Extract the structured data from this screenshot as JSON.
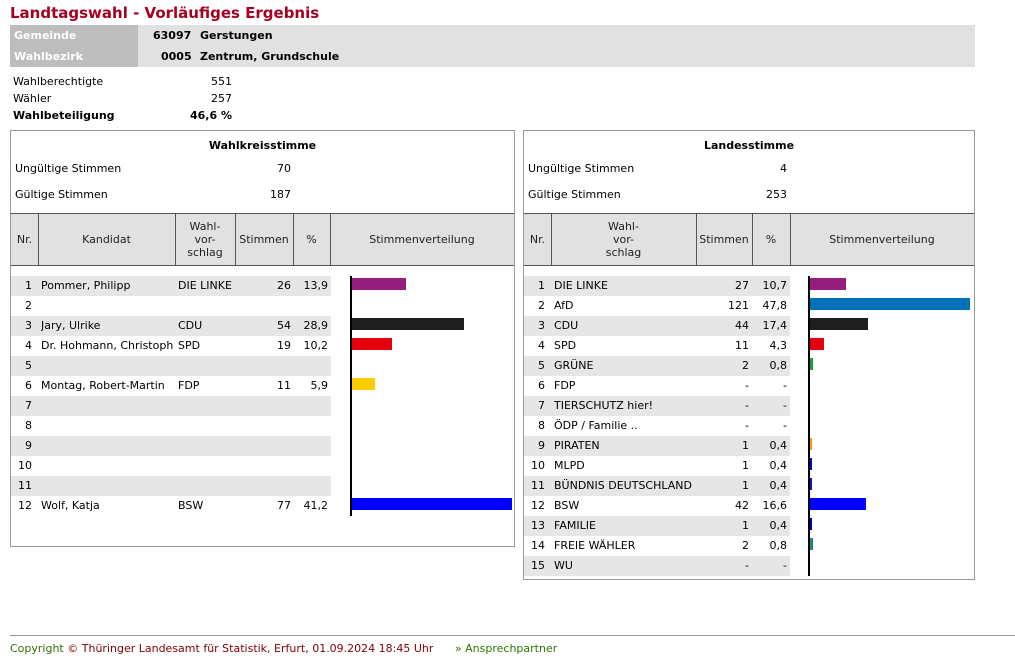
{
  "title": "Landtagswahl - Vorläufiges Ergebnis",
  "gemeinde": {
    "label": "Gemeinde",
    "nr": "63097",
    "name": "Gerstungen"
  },
  "wahlbezirk": {
    "label": "Wahlbezirk",
    "nr": "0005",
    "name": "Zentrum, Grundschule"
  },
  "stats": [
    {
      "label": "Wahlberechtigte",
      "value": "551"
    },
    {
      "label": "Wähler",
      "value": "257"
    },
    {
      "label": "Wahlbeteiligung",
      "value": "46,6 %"
    }
  ],
  "wahlkreis": {
    "title": "Wahlkreisstimme",
    "ungueltig_label": "Ungültige Stimmen",
    "ungueltig": "70",
    "gueltig_label": "Gültige Stimmen",
    "gueltig": "187",
    "headers": [
      "Nr.",
      "Kandidat",
      "Wahl-\nvor-\nschlag",
      "Stimmen",
      "%",
      "Stimmenverteilung"
    ],
    "rows": [
      {
        "nr": "1",
        "name": "Pommer, Philipp",
        "party": "DIE LINKE",
        "votes": "26",
        "pct": "13,9",
        "value": 13.9,
        "color": "#951d7e"
      },
      {
        "nr": "2",
        "name": "",
        "party": "",
        "votes": "",
        "pct": "",
        "value": 0,
        "color": ""
      },
      {
        "nr": "3",
        "name": "Jary, Ulrike",
        "party": "CDU",
        "votes": "54",
        "pct": "28,9",
        "value": 28.9,
        "color": "#1f1f1f"
      },
      {
        "nr": "4",
        "name": "Dr. Hohmann, Christoph",
        "party": "SPD",
        "votes": "19",
        "pct": "10,2",
        "value": 10.2,
        "color": "#e3000f"
      },
      {
        "nr": "5",
        "name": "",
        "party": "",
        "votes": "",
        "pct": "",
        "value": 0,
        "color": ""
      },
      {
        "nr": "6",
        "name": "Montag, Robert-Martin",
        "party": "FDP",
        "votes": "11",
        "pct": "5,9",
        "value": 5.9,
        "color": "#ffcc00"
      },
      {
        "nr": "7",
        "name": "",
        "party": "",
        "votes": "",
        "pct": "",
        "value": 0,
        "color": ""
      },
      {
        "nr": "8",
        "name": "",
        "party": "",
        "votes": "",
        "pct": "",
        "value": 0,
        "color": ""
      },
      {
        "nr": "9",
        "name": "",
        "party": "",
        "votes": "",
        "pct": "",
        "value": 0,
        "color": ""
      },
      {
        "nr": "10",
        "name": "",
        "party": "",
        "votes": "",
        "pct": "",
        "value": 0,
        "color": ""
      },
      {
        "nr": "11",
        "name": "",
        "party": "",
        "votes": "",
        "pct": "",
        "value": 0,
        "color": ""
      },
      {
        "nr": "12",
        "name": "Wolf, Katja",
        "party": "BSW",
        "votes": "77",
        "pct": "41,2",
        "value": 41.2,
        "color": "#0000ff"
      }
    ]
  },
  "landes": {
    "title": "Landesstimme",
    "ungueltig_label": "Ungültige Stimmen",
    "ungueltig": "4",
    "gueltig_label": "Gültige Stimmen",
    "gueltig": "253",
    "headers": [
      "Nr.",
      "Wahl-\nvor-\nschlag",
      "Stimmen",
      "%",
      "Stimmenverteilung"
    ],
    "rows": [
      {
        "nr": "1",
        "party": "DIE LINKE",
        "votes": "27",
        "pct": "10,7",
        "value": 10.7,
        "color": "#951d7e"
      },
      {
        "nr": "2",
        "party": "AfD",
        "votes": "121",
        "pct": "47,8",
        "value": 47.8,
        "color": "#0070b8"
      },
      {
        "nr": "3",
        "party": "CDU",
        "votes": "44",
        "pct": "17,4",
        "value": 17.4,
        "color": "#1f1f1f"
      },
      {
        "nr": "4",
        "party": "SPD",
        "votes": "11",
        "pct": "4,3",
        "value": 4.3,
        "color": "#e3000f"
      },
      {
        "nr": "5",
        "party": "GRÜNE",
        "votes": "2",
        "pct": "0,8",
        "value": 0.8,
        "color": "#1aa037"
      },
      {
        "nr": "6",
        "party": "FDP",
        "votes": "-",
        "pct": "-",
        "value": 0,
        "color": ""
      },
      {
        "nr": "7",
        "party": "TIERSCHUTZ hier!",
        "votes": "-",
        "pct": "-",
        "value": 0,
        "color": ""
      },
      {
        "nr": "8",
        "party": "ÖDP / Familie ..",
        "votes": "-",
        "pct": "-",
        "value": 0,
        "color": ""
      },
      {
        "nr": "9",
        "party": "PIRATEN",
        "votes": "1",
        "pct": "0,4",
        "value": 0.4,
        "color": "#ff9900"
      },
      {
        "nr": "10",
        "party": "MLPD",
        "votes": "1",
        "pct": "0,4",
        "value": 0.4,
        "color": "#0000cc"
      },
      {
        "nr": "11",
        "party": "BÜNDNIS DEUTSCHLAND",
        "votes": "1",
        "pct": "0,4",
        "value": 0.4,
        "color": "#1010cc"
      },
      {
        "nr": "12",
        "party": "BSW",
        "votes": "42",
        "pct": "16,6",
        "value": 16.6,
        "color": "#0000ff"
      },
      {
        "nr": "13",
        "party": "FAMILIE",
        "votes": "1",
        "pct": "0,4",
        "value": 0.4,
        "color": "#0000cc"
      },
      {
        "nr": "14",
        "party": "FREIE WÄHLER",
        "votes": "2",
        "pct": "0,8",
        "value": 0.8,
        "color": "#1a8a7a"
      },
      {
        "nr": "15",
        "party": "WU",
        "votes": "-",
        "pct": "-",
        "value": 0,
        "color": ""
      }
    ]
  },
  "footer": {
    "copyright_word": "Copyright",
    "copyright_rest": "© Thüringer Landesamt für Statistik, Erfurt, 01.09.2024 18:45 Uhr",
    "link": "» Ansprechpartner"
  }
}
